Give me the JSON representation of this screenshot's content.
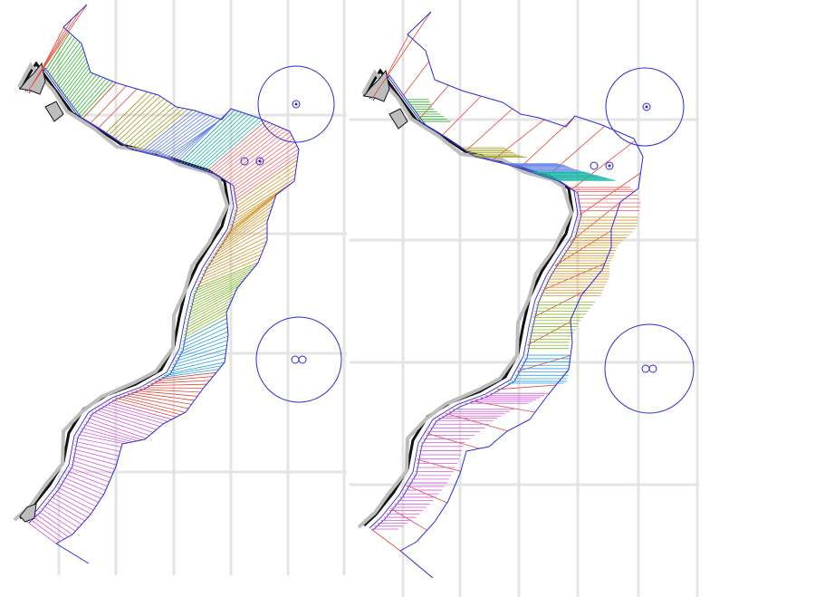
{
  "figure": {
    "panels": [
      {
        "name": "left",
        "fan": "dense"
      },
      {
        "name": "right",
        "fan": "sparse"
      }
    ],
    "colors": {
      "grid": "#e4e4e4",
      "boundary": "#2b2bd6",
      "coast": "#111111",
      "land": "#bdbdbd",
      "red": "#e8483a",
      "green": "#2db52d",
      "olive": "#a3a021",
      "blue": "#5b7ee6",
      "teal": "#19b5a5",
      "salmon": "#f26a6a",
      "orange": "#d2952a",
      "lime": "#86b62a",
      "cyan": "#2aa2e0",
      "magenta": "#d05ed8"
    },
    "legend": []
  }
}
